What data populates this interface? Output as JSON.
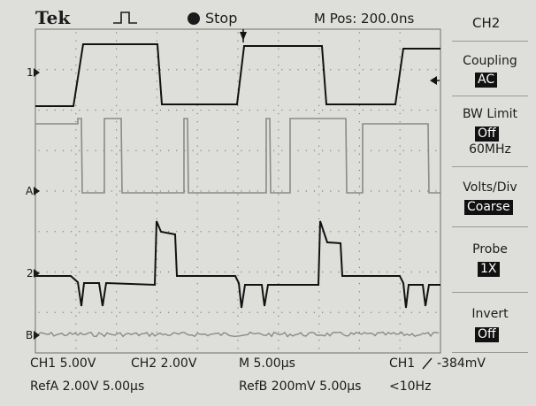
{
  "header": {
    "brand": "Tek",
    "status": "Stop",
    "m_pos": "M Pos: 200.0ns",
    "channel": "CH2"
  },
  "menu": {
    "coupling": {
      "label": "Coupling",
      "value": "AC"
    },
    "bw_limit": {
      "label": "BW Limit",
      "value": "Off",
      "sub": "60MHz"
    },
    "volts_div": {
      "label": "Volts/Div",
      "value": "Coarse"
    },
    "probe": {
      "label": "Probe",
      "value": "1X"
    },
    "invert": {
      "label": "Invert",
      "value": "Off"
    }
  },
  "markers": {
    "ch1": "1",
    "refa": "A",
    "ch2": "2",
    "refb": "B"
  },
  "footer": {
    "ch1_scale": "CH1  5.00V",
    "ch2_scale": "CH2  2.00V",
    "timebase": "M 5.00µs",
    "trigger_src": "CH1",
    "trigger_level": "-384mV",
    "refa": "RefA 2.00V 5.00µs",
    "refb": "RefB 200mV 5.00µs",
    "freq": "<10Hz"
  },
  "colors": {
    "screen_bg": "#dededb",
    "trace_dark": "#111111",
    "trace_ref": "#8a8a8a",
    "grid": "#7d7d7b"
  }
}
